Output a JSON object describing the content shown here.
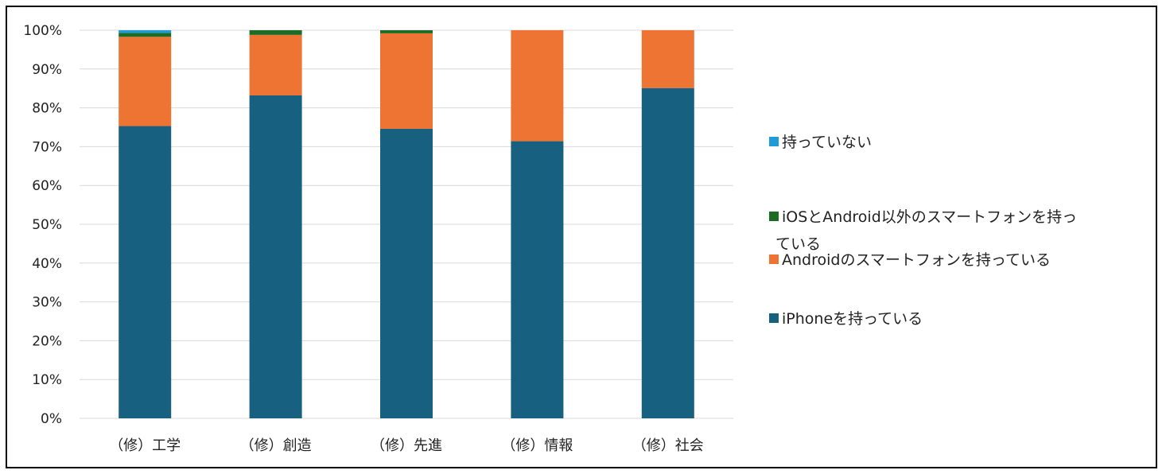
{
  "chart_data": {
    "type": "bar",
    "stacked": true,
    "categories": [
      "（修）工学",
      "（修）創造",
      "（修）先進",
      "（修）情報",
      "（修）社会"
    ],
    "series": [
      {
        "name": "iPhoneを持っている",
        "values": [
          75.3,
          83.2,
          74.6,
          71.4,
          85.1
        ],
        "color": "#17607f"
      },
      {
        "name": "Androidのスマートフォンを持っている",
        "values": [
          23.0,
          15.6,
          24.6,
          28.6,
          14.9
        ],
        "color": "#ed7433"
      },
      {
        "name": "iOSとAndroid以外のスマートフォンを持っている",
        "values": [
          1.0,
          1.2,
          0.8,
          0,
          0
        ],
        "color": "#1e6b25"
      },
      {
        "name": "持っていない",
        "values": [
          0.7,
          0,
          0,
          0,
          0
        ],
        "color": "#1f9bd6"
      }
    ],
    "legend_lines": [
      {
        "series_index": 3,
        "lines": [
          "持っていない"
        ]
      },
      {
        "series_index": 2,
        "lines": [
          "iOSとAndroid以外のスマートフォンを持っ",
          "ている"
        ]
      },
      {
        "series_index": 1,
        "lines": [
          "Androidのスマートフォンを持っている"
        ]
      },
      {
        "series_index": 0,
        "lines": [
          "iPhoneを持っている"
        ]
      }
    ],
    "y_ticks": [
      "0%",
      "10%",
      "20%",
      "30%",
      "40%",
      "50%",
      "60%",
      "70%",
      "80%",
      "90%",
      "100%"
    ],
    "ylim": [
      0,
      100
    ],
    "grid": true,
    "legend_position": "right",
    "gridline_color": "#d9d9d9"
  }
}
